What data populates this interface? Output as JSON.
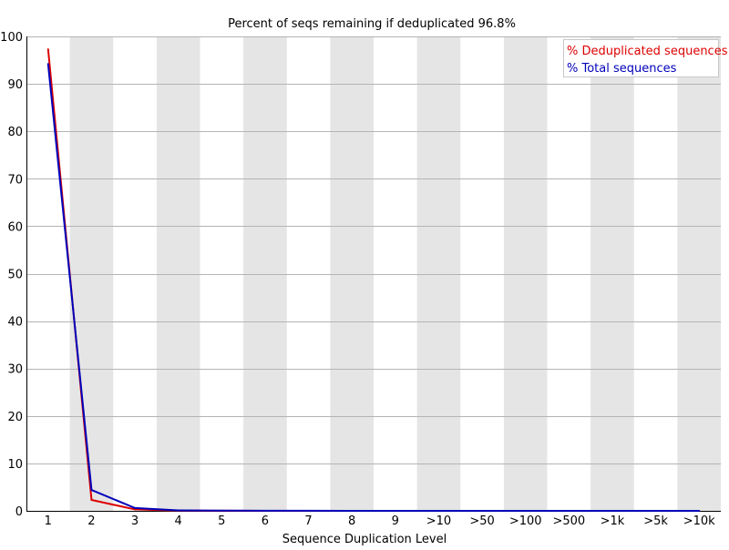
{
  "chart_data": {
    "type": "line",
    "title": "Percent of seqs remaining if deduplicated 96.8%",
    "xlabel": "Sequence Duplication Level",
    "ylabel": "",
    "categories": [
      "1",
      "2",
      "3",
      "4",
      "5",
      "6",
      "7",
      "8",
      "9",
      ">10",
      ">50",
      ">100",
      ">500",
      ">1k",
      ">5k",
      ">10k"
    ],
    "ylim": [
      0,
      100
    ],
    "yticks": [
      0,
      10,
      20,
      30,
      40,
      50,
      60,
      70,
      80,
      90,
      100
    ],
    "grid": true,
    "legend_position": "top-right",
    "series": [
      {
        "name": "% Deduplicated sequences",
        "color": "#dd0000",
        "values": [
          97.3,
          2.3,
          0.3,
          0.05,
          0.02,
          0.01,
          0.01,
          0,
          0,
          0,
          0,
          0,
          0,
          0,
          0,
          0
        ]
      },
      {
        "name": "% Total sequences",
        "color": "#0000bb",
        "values": [
          94.2,
          4.4,
          0.6,
          0.1,
          0.05,
          0.03,
          0.02,
          0.01,
          0.01,
          0.01,
          0,
          0,
          0,
          0,
          0,
          0
        ]
      }
    ]
  }
}
